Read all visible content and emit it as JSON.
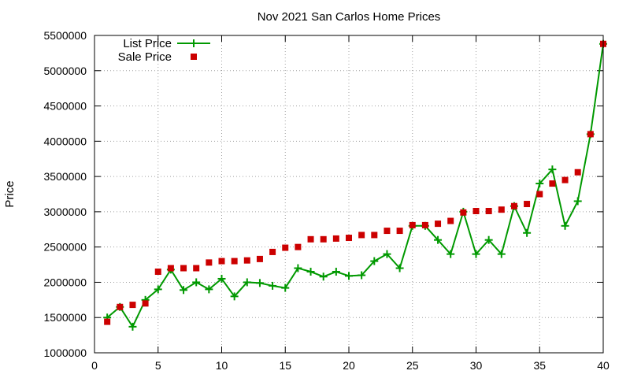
{
  "chart_data": {
    "type": "line",
    "title": "Nov 2021 San Carlos Home Prices",
    "xlabel": "",
    "ylabel": "Price",
    "xlim": [
      0,
      40
    ],
    "ylim": [
      1000000,
      5500000
    ],
    "x_ticks": [
      0,
      5,
      10,
      15,
      20,
      25,
      30,
      35,
      40
    ],
    "y_ticks": [
      1000000,
      1500000,
      2000000,
      2500000,
      3000000,
      3500000,
      4000000,
      4500000,
      5000000,
      5500000
    ],
    "grid": true,
    "legend_position": "top-left",
    "series": [
      {
        "name": "List Price",
        "style": "line-plus",
        "color": "#009900",
        "x": [
          1,
          2,
          3,
          4,
          5,
          6,
          7,
          8,
          9,
          10,
          11,
          12,
          13,
          14,
          15,
          16,
          17,
          18,
          19,
          20,
          21,
          22,
          23,
          24,
          25,
          26,
          27,
          28,
          29,
          30,
          31,
          32,
          33,
          34,
          35,
          36,
          37,
          38,
          39,
          40
        ],
        "y": [
          1500000,
          1650000,
          1370000,
          1750000,
          1900000,
          2180000,
          1890000,
          2000000,
          1900000,
          2050000,
          1800000,
          2000000,
          1990000,
          1950000,
          1920000,
          2200000,
          2150000,
          2080000,
          2150000,
          2090000,
          2100000,
          2300000,
          2400000,
          2200000,
          2800000,
          2800000,
          2600000,
          2400000,
          3000000,
          2400000,
          2600000,
          2400000,
          3080000,
          2700000,
          3400000,
          3600000,
          2800000,
          3150000,
          4100000,
          5380000
        ]
      },
      {
        "name": "Sale Price",
        "style": "square",
        "color": "#cc0000",
        "x": [
          1,
          2,
          3,
          4,
          5,
          6,
          7,
          8,
          9,
          10,
          11,
          12,
          13,
          14,
          15,
          16,
          17,
          18,
          19,
          20,
          21,
          22,
          23,
          24,
          25,
          26,
          27,
          28,
          29,
          30,
          31,
          32,
          33,
          34,
          35,
          36,
          37,
          38,
          39,
          40
        ],
        "y": [
          1440000,
          1650000,
          1680000,
          1700000,
          2150000,
          2200000,
          2200000,
          2200000,
          2280000,
          2300000,
          2300000,
          2310000,
          2330000,
          2430000,
          2490000,
          2500000,
          2610000,
          2610000,
          2620000,
          2630000,
          2670000,
          2670000,
          2730000,
          2730000,
          2810000,
          2810000,
          2830000,
          2870000,
          2990000,
          3010000,
          3010000,
          3030000,
          3080000,
          3110000,
          3250000,
          3400000,
          3450000,
          3560000,
          4100000,
          5380000
        ]
      }
    ]
  }
}
